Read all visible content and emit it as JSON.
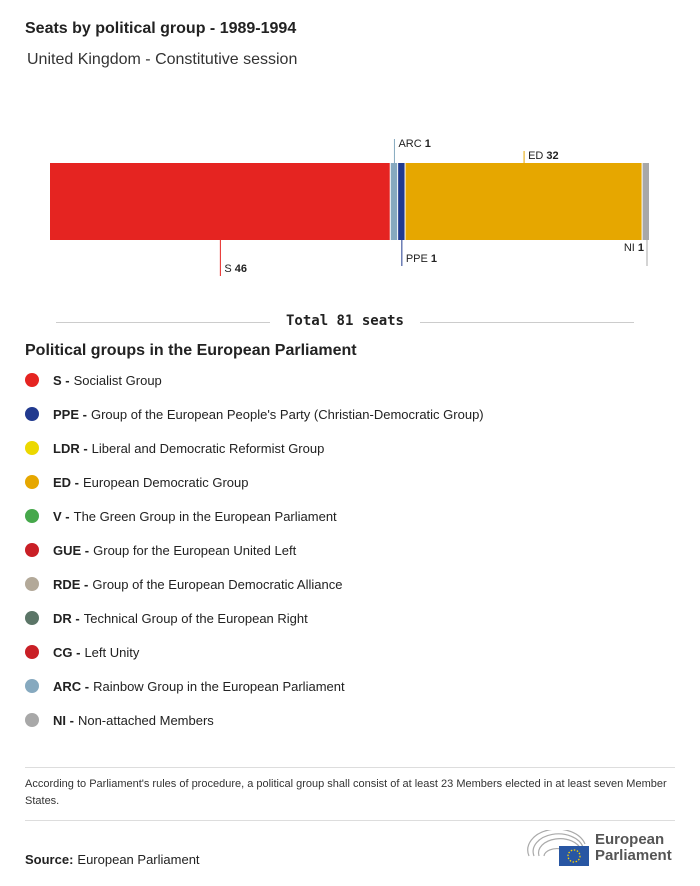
{
  "title": "Seats by political group - 1989-1994",
  "subtitle": "United Kingdom - Constitutive session",
  "chart_data": {
    "type": "bar",
    "orientation": "horizontal-stacked",
    "total_label": "Total 81 seats",
    "total": 81,
    "segments": [
      {
        "code": "S",
        "value": 46,
        "color": "#e52421",
        "label_pos": "below"
      },
      {
        "code": "ARC",
        "value": 1,
        "color": "#86a9bf",
        "label_pos": "above"
      },
      {
        "code": "PPE",
        "value": 1,
        "color": "#213a8f",
        "label_pos": "below"
      },
      {
        "code": "ED",
        "value": 32,
        "color": "#e6a700",
        "label_pos": "above"
      },
      {
        "code": "NI",
        "value": 1,
        "color": "#a8a8a8",
        "label_pos": "below"
      }
    ]
  },
  "legend": {
    "title": "Political groups in the European Parliament",
    "items": [
      {
        "code": "S -",
        "name": "Socialist Group",
        "color": "#e52421"
      },
      {
        "code": "PPE -",
        "name": "Group of the European People's Party (Christian-Democratic Group)",
        "color": "#213a8f"
      },
      {
        "code": "LDR -",
        "name": "Liberal and Democratic Reformist Group",
        "color": "#ecd800"
      },
      {
        "code": "ED -",
        "name": "European Democratic Group",
        "color": "#e6a700"
      },
      {
        "code": "V -",
        "name": "The Green Group in the European Parliament",
        "color": "#46a84b"
      },
      {
        "code": "GUE -",
        "name": "Group for the European United Left",
        "color": "#c91f26"
      },
      {
        "code": "RDE -",
        "name": "Group of the European Democratic Alliance",
        "color": "#b3a999"
      },
      {
        "code": "DR -",
        "name": "Technical Group of the European Right",
        "color": "#5b7567"
      },
      {
        "code": "CG -",
        "name": "Left Unity",
        "color": "#c91f26"
      },
      {
        "code": "ARC -",
        "name": "Rainbow Group in the European Parliament",
        "color": "#86a9bf"
      },
      {
        "code": "NI -",
        "name": "Non-attached Members",
        "color": "#a8a8a8"
      }
    ]
  },
  "note": "According to Parliament's rules of procedure, a political group shall consist of at least 23 Members elected in at least seven Member States.",
  "source": {
    "label": "Source:",
    "value": "European Parliament"
  },
  "logo": {
    "line1": "European",
    "line2": "Parliament"
  }
}
